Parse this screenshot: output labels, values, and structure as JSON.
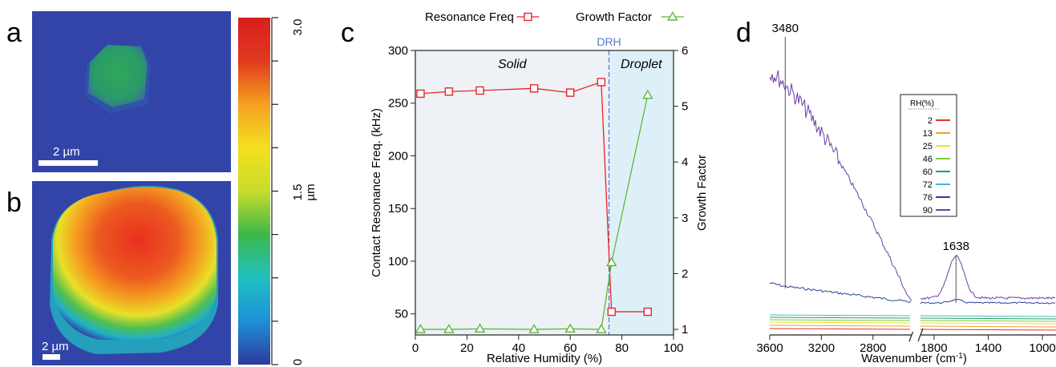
{
  "panel_labels": {
    "a": "a",
    "b": "b",
    "c": "c",
    "d": "d"
  },
  "images": {
    "a": {
      "scale_bar_label": "2 µm",
      "background_color": "#3344a8",
      "particle_color": "#2fa35a"
    },
    "b": {
      "scale_bar_label": "2 µm",
      "background_color": "#3344a8"
    }
  },
  "colorbar": {
    "min_label": "0",
    "mid_label": "1.5",
    "max_label": "3.0",
    "unit": "µm",
    "min_value": 0,
    "max_value": 3.0,
    "colors": [
      "#2b3a9c",
      "#1e90d8",
      "#20c0c0",
      "#3cb84a",
      "#c8dc2a",
      "#f5e020",
      "#f5a020",
      "#e03a1e",
      "#d81e1e"
    ]
  },
  "chart_data": [
    {
      "type": "line",
      "panel": "c",
      "xlabel": "Relative Humidity (%)",
      "ylabel": "Contact Resonance Freq. (kHz)",
      "y2label": "Growth Factor",
      "xlim": [
        0,
        100
      ],
      "ylim": [
        30,
        300
      ],
      "y2lim": [
        0.9,
        6
      ],
      "xticks": [
        "0",
        "20",
        "40",
        "60",
        "80",
        "100"
      ],
      "yticks": [
        "50",
        "100",
        "150",
        "200",
        "250",
        "300"
      ],
      "y2ticks": [
        "1",
        "2",
        "3",
        "4",
        "5",
        "6"
      ],
      "regions": [
        {
          "label": "Solid",
          "x_from": 0,
          "x_to": 75,
          "color": "#eef1f5"
        },
        {
          "label": "Droplet",
          "x_from": 75,
          "x_to": 100,
          "color": "#ddf0f8"
        }
      ],
      "drh": {
        "label": "DRH",
        "x": 75,
        "color": "#5577cc"
      },
      "series": [
        {
          "name": "Resonance Freq",
          "axis": "left",
          "marker": "square",
          "color": "#e8262a",
          "x": [
            2,
            13,
            25,
            46,
            60,
            72,
            76,
            90
          ],
          "y": [
            259,
            261,
            262,
            264,
            260,
            270,
            52,
            52
          ]
        },
        {
          "name": "Growth Factor",
          "axis": "right",
          "marker": "triangle",
          "color": "#5cb83a",
          "x": [
            2,
            13,
            25,
            46,
            60,
            72,
            76,
            90
          ],
          "y": [
            1.0,
            1.0,
            1.01,
            1.0,
            1.01,
            1.0,
            2.2,
            5.2
          ]
        }
      ]
    },
    {
      "type": "line",
      "panel": "d",
      "xlabel": "Wavenumber (cm",
      "xlabel_sup": "-1",
      "xlabel_suffix": ")",
      "x_reversed": true,
      "x_break": [
        1800,
        1900
      ],
      "xticks_left": [
        "3600",
        "3200",
        "2800"
      ],
      "xticks_right": [
        "1800",
        "1400",
        "1000"
      ],
      "xlim_left": [
        3600,
        2500
      ],
      "xlim_right": [
        1900,
        900
      ],
      "peak_labels": [
        {
          "label": "3480",
          "x": 3480
        },
        {
          "label": "1638",
          "x": 1638
        }
      ],
      "legend": {
        "title": "RH(%)",
        "entries": [
          {
            "label": "2",
            "color": "#e83030"
          },
          {
            "label": "13",
            "color": "#f5a030"
          },
          {
            "label": "25",
            "color": "#e8e030"
          },
          {
            "label": "46",
            "color": "#7ccc3a"
          },
          {
            "label": "60",
            "color": "#2aa048"
          },
          {
            "label": "72",
            "color": "#40b8e0"
          },
          {
            "label": "76",
            "color": "#2a40a0"
          },
          {
            "label": "90",
            "color": "#6a40a8"
          }
        ]
      }
    }
  ]
}
